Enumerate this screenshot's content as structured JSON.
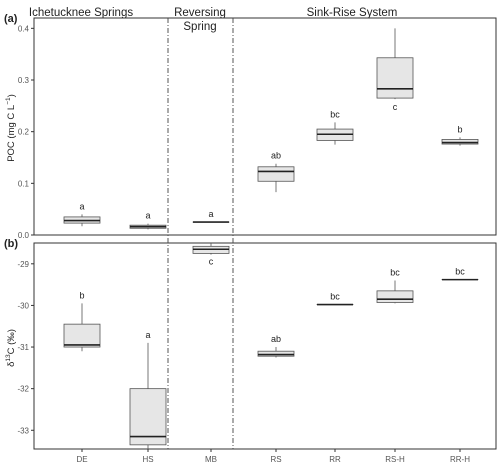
{
  "chart_data": [
    {
      "type": "box",
      "panel_label": "(a)",
      "ylabel_parts": [
        "POC (mg C L",
        "−1",
        ")"
      ],
      "ylim": [
        0,
        0.42
      ],
      "yticks": [
        0.0,
        0.1,
        0.2,
        0.3,
        0.4
      ],
      "ytick_labels": [
        "0.0",
        "0.1",
        "0.2",
        "0.3",
        "0.4"
      ],
      "categories": [
        "DE",
        "HS",
        "MB",
        "RS",
        "RR",
        "RS-H",
        "RR-H"
      ],
      "boxes": [
        {
          "category": "DE",
          "min": 0.017,
          "q1": 0.023,
          "median": 0.028,
          "q3": 0.035,
          "max": 0.04,
          "letter": "a"
        },
        {
          "category": "HS",
          "min": 0.011,
          "q1": 0.013,
          "median": 0.016,
          "q3": 0.019,
          "max": 0.022,
          "letter": "a"
        },
        {
          "category": "MB",
          "min": 0.025,
          "q1": 0.025,
          "median": 0.025,
          "q3": 0.025,
          "max": 0.025,
          "letter": "a"
        },
        {
          "category": "RS",
          "min": 0.083,
          "q1": 0.104,
          "median": 0.123,
          "q3": 0.132,
          "max": 0.138,
          "letter": "ab"
        },
        {
          "category": "RR",
          "min": 0.175,
          "q1": 0.183,
          "median": 0.195,
          "q3": 0.205,
          "max": 0.218,
          "letter": "bc"
        },
        {
          "category": "RS-H",
          "min": 0.263,
          "q1": 0.265,
          "median": 0.283,
          "q3": 0.343,
          "max": 0.4,
          "letter": "c"
        },
        {
          "category": "RR-H",
          "min": 0.173,
          "q1": 0.176,
          "median": 0.179,
          "q3": 0.185,
          "max": 0.189,
          "letter": "b"
        }
      ]
    },
    {
      "type": "box",
      "panel_label": "(b)",
      "ylabel_parts": [
        "δ",
        "13",
        "C (‰)"
      ],
      "ylim": [
        -33.45,
        -28.5
      ],
      "yticks": [
        -33,
        -32,
        -31,
        -30,
        -29
      ],
      "ytick_labels": [
        "-33",
        "-32",
        "-31",
        "-30",
        "-29"
      ],
      "categories": [
        "DE",
        "HS",
        "MB",
        "RS",
        "RR",
        "RS-H",
        "RR-H"
      ],
      "boxes": [
        {
          "category": "DE",
          "min": -31.1,
          "q1": -31.0,
          "median": -30.95,
          "q3": -30.45,
          "max": -29.95,
          "letter": "b"
        },
        {
          "category": "HS",
          "min": -33.45,
          "q1": -33.35,
          "median": -33.15,
          "q3": -32.0,
          "max": -30.9,
          "letter": "a"
        },
        {
          "category": "MB",
          "min": -28.78,
          "q1": -28.75,
          "median": -28.65,
          "q3": -28.58,
          "max": -28.5,
          "letter": "c"
        },
        {
          "category": "RS",
          "min": -31.25,
          "q1": -31.22,
          "median": -31.18,
          "q3": -31.1,
          "max": -31.0,
          "letter": "ab"
        },
        {
          "category": "RR",
          "min": -29.98,
          "q1": -29.98,
          "median": -29.98,
          "q3": -29.98,
          "max": -29.98,
          "letter": "bc"
        },
        {
          "category": "RS-H",
          "min": -29.95,
          "q1": -29.93,
          "median": -29.85,
          "q3": -29.65,
          "max": -29.4,
          "letter": "bc"
        },
        {
          "category": "RR-H",
          "min": -29.38,
          "q1": -29.38,
          "median": -29.38,
          "q3": -29.38,
          "max": -29.38,
          "letter": "bc"
        }
      ]
    }
  ],
  "group_labels": [
    {
      "lines": [
        "Ichetucknee Springs"
      ]
    },
    {
      "lines": [
        "Reversing",
        "Spring"
      ]
    },
    {
      "lines": [
        "Sink-Rise System"
      ]
    }
  ],
  "colors": {
    "box_fill": "#e6e6e6",
    "box_stroke": "#555555",
    "median": "#222222",
    "frame": "#333333",
    "divider": "#444444",
    "text": "#222222",
    "tick_text": "#555555"
  }
}
